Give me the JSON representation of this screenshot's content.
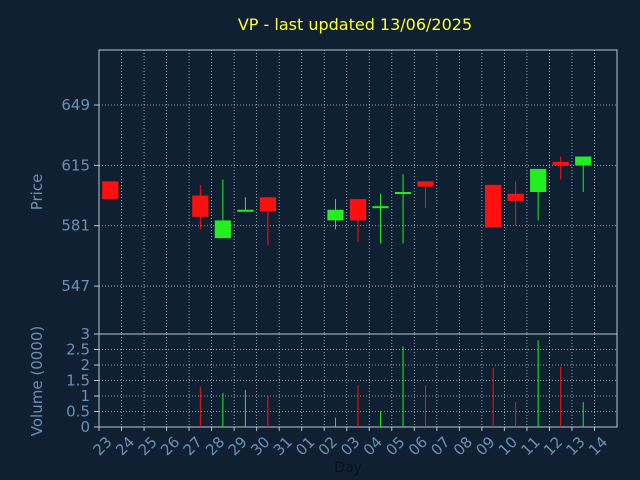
{
  "chart_data": [
    {
      "type": "candlestick",
      "title": "VP - last updated 13/06/2025",
      "ylabel": "Price",
      "ylim": [
        520,
        680
      ],
      "yticks": [
        547,
        581,
        615,
        649
      ],
      "grid": true,
      "colors": {
        "up": "#22ee22",
        "down": "#ff1010",
        "background": "#0f2033",
        "plot_area": "#0f2033",
        "grid": "#b8c4d0",
        "text": "#6f8fb0",
        "title": "#ffff33"
      },
      "x": [
        "23",
        "24",
        "25",
        "26",
        "27",
        "28",
        "29",
        "30",
        "31",
        "01",
        "02",
        "03",
        "04",
        "05",
        "06",
        "07",
        "08",
        "09",
        "10",
        "11",
        "12",
        "13",
        "14"
      ],
      "series": [
        {
          "candles": [
            {
              "day": "23",
              "open": 606,
              "close": 596,
              "high": 606,
              "low": 596
            },
            {
              "day": "27",
              "open": 598,
              "close": 586,
              "high": 604,
              "low": 579
            },
            {
              "day": "28",
              "open": 574,
              "close": 584,
              "high": 607,
              "low": 574
            },
            {
              "day": "29",
              "open": 589,
              "close": 590,
              "high": 597,
              "low": 589
            },
            {
              "day": "30",
              "open": 597,
              "close": 589,
              "high": 597,
              "low": 570
            },
            {
              "day": "02",
              "open": 584,
              "close": 590,
              "high": 596,
              "low": 579
            },
            {
              "day": "03",
              "open": 596,
              "close": 584,
              "high": 596,
              "low": 572
            },
            {
              "day": "04",
              "open": 591,
              "close": 592,
              "high": 599,
              "low": 571
            },
            {
              "day": "05",
              "open": 599,
              "close": 600,
              "high": 610,
              "low": 571
            },
            {
              "day": "06",
              "open": 606,
              "close": 603,
              "high": 606,
              "low": 591
            },
            {
              "day": "09",
              "open": 604,
              "close": 580,
              "high": 604,
              "low": 580
            },
            {
              "day": "10",
              "open": 599,
              "close": 595,
              "high": 606,
              "low": 581
            },
            {
              "day": "11",
              "open": 600,
              "close": 613,
              "high": 613,
              "low": 584
            },
            {
              "day": "12",
              "open": 617,
              "close": 615,
              "high": 620,
              "low": 607
            },
            {
              "day": "13",
              "open": 615,
              "close": 620,
              "high": 620,
              "low": 600
            }
          ]
        }
      ]
    },
    {
      "type": "bar",
      "ylabel": "Volume (0000)",
      "xlabel": "Day",
      "ylim": [
        0,
        3
      ],
      "yticks": [
        0,
        0.5,
        1,
        1.5,
        2,
        2.5,
        3
      ],
      "categories": [
        "23",
        "24",
        "25",
        "26",
        "27",
        "28",
        "29",
        "30",
        "31",
        "01",
        "02",
        "03",
        "04",
        "05",
        "06",
        "07",
        "08",
        "09",
        "10",
        "11",
        "12",
        "13",
        "14"
      ],
      "series": [
        {
          "bars": [
            {
              "day": "27",
              "value": 1.3,
              "dir": "down"
            },
            {
              "day": "28",
              "value": 1.1,
              "dir": "up"
            },
            {
              "day": "29",
              "value": 1.2,
              "dir": "up"
            },
            {
              "day": "30",
              "value": 1.0,
              "dir": "down"
            },
            {
              "day": "02",
              "value": 0.3,
              "dir": "up"
            },
            {
              "day": "03",
              "value": 1.35,
              "dir": "down"
            },
            {
              "day": "04",
              "value": 0.5,
              "dir": "up"
            },
            {
              "day": "05",
              "value": 2.6,
              "dir": "up"
            },
            {
              "day": "06",
              "value": 1.35,
              "dir": "down"
            },
            {
              "day": "09",
              "value": 1.9,
              "dir": "down"
            },
            {
              "day": "10",
              "value": 0.8,
              "dir": "down"
            },
            {
              "day": "11",
              "value": 2.8,
              "dir": "up"
            },
            {
              "day": "12",
              "value": 1.95,
              "dir": "down"
            },
            {
              "day": "13",
              "value": 0.8,
              "dir": "up"
            }
          ]
        }
      ]
    }
  ]
}
